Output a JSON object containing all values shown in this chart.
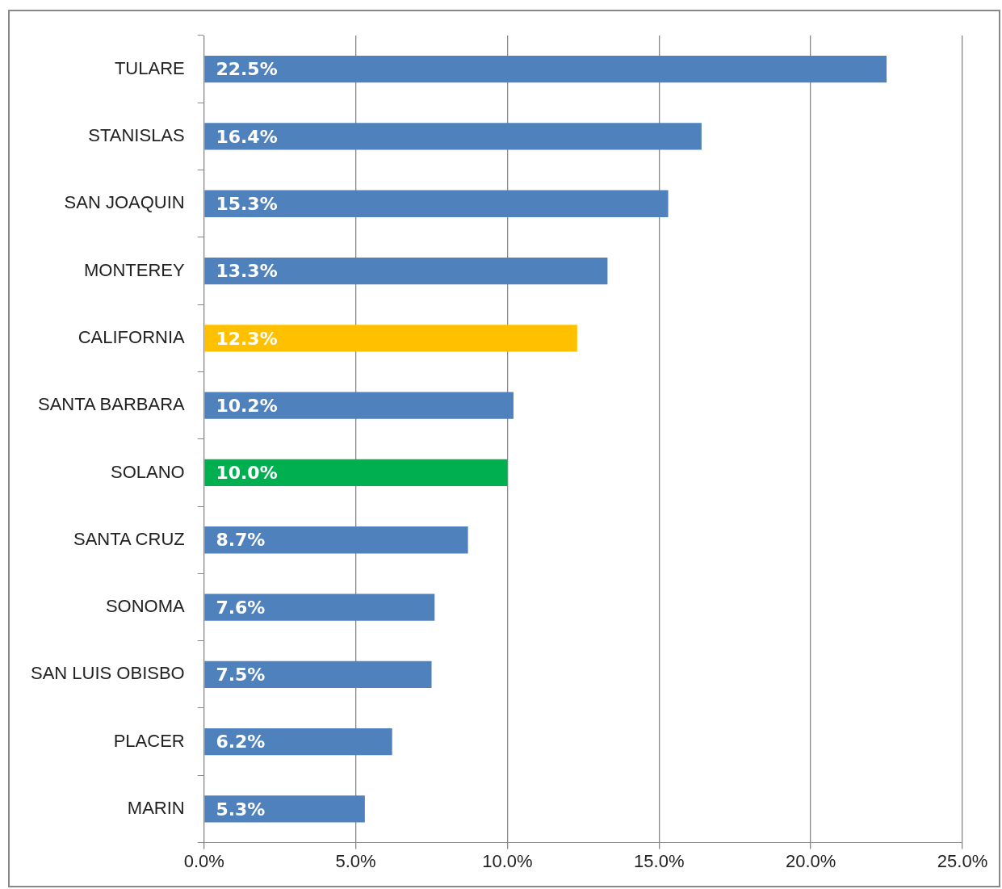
{
  "chart_data": {
    "type": "bar",
    "orientation": "horizontal",
    "categories": [
      "TULARE",
      "STANISLAS",
      "SAN JOAQUIN",
      "MONTEREY",
      "CALIFORNIA",
      "SANTA BARBARA",
      "SOLANO",
      "SANTA CRUZ",
      "SONOMA",
      "SAN LUIS OBISBO",
      "PLACER",
      "MARIN"
    ],
    "values": [
      22.5,
      16.4,
      15.3,
      13.3,
      12.3,
      10.2,
      10.0,
      8.7,
      7.6,
      7.5,
      6.2,
      5.3
    ],
    "colors": [
      "#4f81bd",
      "#4f81bd",
      "#4f81bd",
      "#4f81bd",
      "#ffc000",
      "#4f81bd",
      "#00b050",
      "#4f81bd",
      "#4f81bd",
      "#4f81bd",
      "#4f81bd",
      "#4f81bd"
    ],
    "value_labels": [
      "22.5%",
      "16.4%",
      "15.3%",
      "13.3%",
      "12.3%",
      "10.2%",
      "10.0%",
      "8.7%",
      "7.6%",
      "7.5%",
      "6.2%",
      "5.3%"
    ],
    "xlim": [
      0,
      25
    ],
    "xticks": [
      {
        "value": 0,
        "label": "0.0%"
      },
      {
        "value": 5,
        "label": "5.0%"
      },
      {
        "value": 10,
        "label": "10.0%"
      },
      {
        "value": 15,
        "label": "15.0%"
      },
      {
        "value": 20,
        "label": "20.0%"
      },
      {
        "value": 25,
        "label": "25.0%"
      }
    ],
    "grid": "x",
    "legend": false
  }
}
